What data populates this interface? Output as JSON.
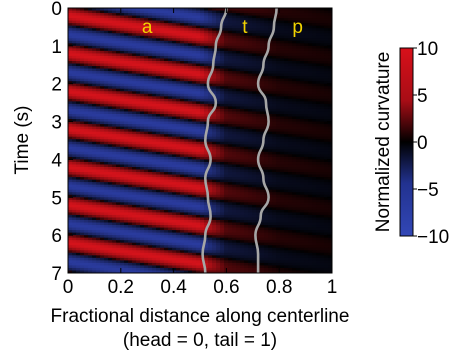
{
  "chart_data": {
    "type": "heatmap",
    "title": "",
    "xlabel": "Fractional distance along centerline",
    "xlabel_line2": "(head = 0, tail = 1)",
    "ylabel": "Time (s)",
    "xlim": [
      0,
      1
    ],
    "ylim": [
      0,
      7
    ],
    "y_reversed": true,
    "x_ticks": [
      0,
      0.2,
      0.4,
      0.6,
      0.8,
      1
    ],
    "x_tick_labels": [
      "0",
      "0.2",
      "0.4",
      "0.6",
      "0.8",
      "1"
    ],
    "y_ticks": [
      0,
      1,
      2,
      3,
      4,
      5,
      6,
      7
    ],
    "y_tick_labels": [
      "0",
      "1",
      "2",
      "3",
      "4",
      "5",
      "6",
      "7"
    ],
    "colorbar": {
      "label": "Normalized curvature",
      "min": -10,
      "max": 10,
      "ticks": [
        10,
        5,
        0,
        -5,
        -10
      ],
      "tick_labels": [
        "10",
        "5",
        "0",
        "−5",
        "−10"
      ],
      "colors": {
        "negative": "#2d3fa8",
        "zero": "#000000",
        "positive": "#e3141d"
      }
    },
    "wave": {
      "period_s": 1.0,
      "phase_lag_per_unit_distance_s": 1.1,
      "amplitude_profile": [
        {
          "x": 0.0,
          "amplitude": 9
        },
        {
          "x": 0.5,
          "amplitude": 9
        },
        {
          "x": 0.6,
          "amplitude": 2
        },
        {
          "x": 0.8,
          "amplitude": 0.6
        },
        {
          "x": 1.0,
          "amplitude": 0.3
        }
      ]
    },
    "region_labels": [
      {
        "text": "a",
        "x": 0.3,
        "y": 0.5
      },
      {
        "text": "t",
        "x": 0.67,
        "y": 0.5
      },
      {
        "text": "p",
        "x": 0.87,
        "y": 0.5
      }
    ],
    "boundaries": [
      {
        "name": "a-t boundary",
        "color": "#a6a6a6",
        "points": [
          [
            0.6,
            0.0
          ],
          [
            0.58,
            0.5
          ],
          [
            0.56,
            1.0
          ],
          [
            0.55,
            1.5
          ],
          [
            0.53,
            2.0
          ],
          [
            0.56,
            2.5
          ],
          [
            0.53,
            3.0
          ],
          [
            0.52,
            3.5
          ],
          [
            0.54,
            4.0
          ],
          [
            0.52,
            4.5
          ],
          [
            0.53,
            5.0
          ],
          [
            0.54,
            5.5
          ],
          [
            0.52,
            6.0
          ],
          [
            0.51,
            6.5
          ],
          [
            0.52,
            7.0
          ]
        ]
      },
      {
        "name": "t-p boundary",
        "color": "#a6a6a6",
        "points": [
          [
            0.79,
            0.0
          ],
          [
            0.78,
            0.5
          ],
          [
            0.76,
            1.0
          ],
          [
            0.74,
            1.5
          ],
          [
            0.72,
            2.0
          ],
          [
            0.75,
            2.5
          ],
          [
            0.76,
            3.0
          ],
          [
            0.74,
            3.5
          ],
          [
            0.72,
            4.0
          ],
          [
            0.74,
            4.5
          ],
          [
            0.76,
            5.0
          ],
          [
            0.73,
            5.5
          ],
          [
            0.71,
            6.0
          ],
          [
            0.72,
            6.5
          ],
          [
            0.72,
            7.0
          ]
        ]
      }
    ]
  }
}
